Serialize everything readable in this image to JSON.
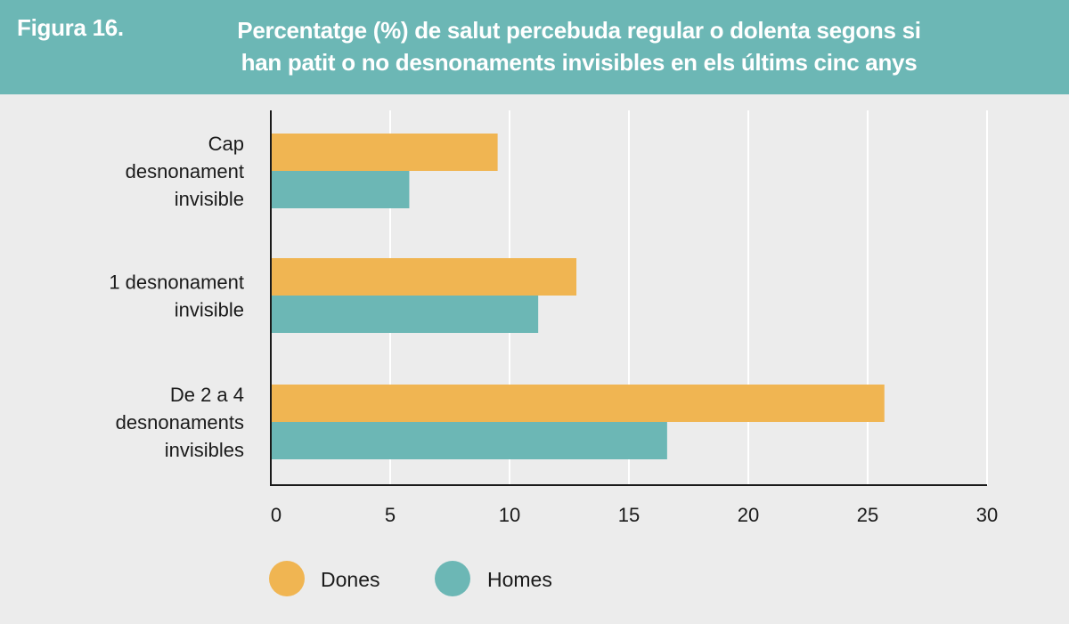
{
  "header": {
    "figure_label": "Figura 16.",
    "title_line1": "Percentatge (%) de salut percebuda regular o dolenta segons si",
    "title_line2": "han patit o no desnonaments invisibles en els últims cinc anys"
  },
  "colors": {
    "header_bg": "#6cb7b5",
    "dones": "#f0b552",
    "homes": "#6cb7b5",
    "background": "#ececec",
    "gridline": "#ffffff",
    "axis": "#1a1a1a"
  },
  "chart_data": {
    "type": "bar",
    "orientation": "horizontal",
    "title": "Percentatge (%) de salut percebuda regular o dolenta segons si han patit o no desnonaments invisibles en els últims cinc anys",
    "categories": [
      [
        "Cap",
        "desnonament",
        "invisible"
      ],
      [
        "1 desnonament",
        "invisible"
      ],
      [
        "De 2 a 4",
        "desnonaments",
        "invisibles"
      ]
    ],
    "series": [
      {
        "name": "Dones",
        "values": [
          9.5,
          12.8,
          25.7
        ]
      },
      {
        "name": "Homes",
        "values": [
          5.8,
          11.2,
          16.6
        ]
      }
    ],
    "xlim": [
      0,
      30
    ],
    "xticks": [
      0,
      5,
      10,
      15,
      20,
      25,
      30
    ],
    "xlabel": "",
    "ylabel": "",
    "grid": true,
    "legend_position": "bottom-left"
  }
}
